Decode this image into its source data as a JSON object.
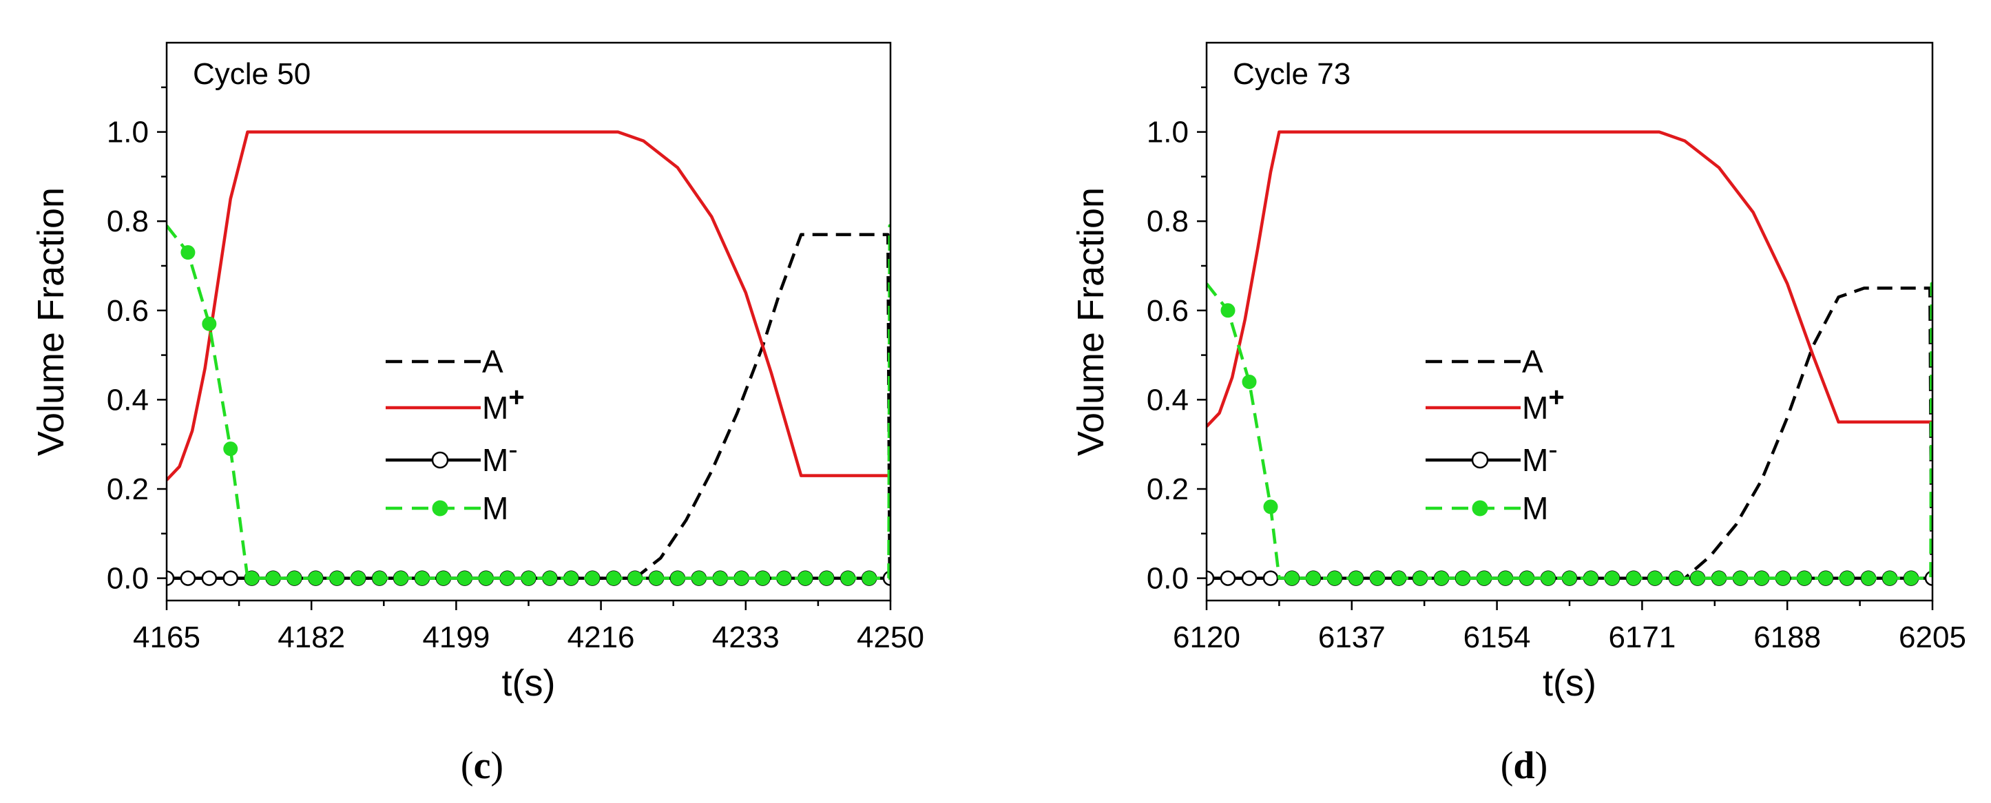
{
  "chart_data": [
    {
      "type": "line",
      "panel_label": "c",
      "annotation": "Cycle 50",
      "xlabel": "t(s)",
      "ylabel": "Volume Fraction",
      "xlim": [
        4165,
        4250
      ],
      "ylim": [
        -0.05,
        1.2
      ],
      "xticks": [
        4165,
        4182,
        4199,
        4216,
        4233,
        4250
      ],
      "yticks": [
        0.0,
        0.2,
        0.4,
        0.6,
        0.8,
        1.0
      ],
      "ytick_labels": [
        "0.0",
        "0.2",
        "0.4",
        "0.6",
        "0.8",
        "1.0"
      ],
      "legend_position": "center",
      "series": [
        {
          "name": "A",
          "sup": "",
          "style": "dashed",
          "color": "#000000",
          "marker": "none",
          "x": [
            4165,
            4220,
            4223,
            4226,
            4229,
            4232,
            4235,
            4237,
            4239.5,
            4249.7,
            4249.9,
            4250
          ],
          "y": [
            0,
            0,
            0.045,
            0.13,
            0.24,
            0.37,
            0.52,
            0.64,
            0.77,
            0.77,
            0.0,
            0.0
          ]
        },
        {
          "name": "M",
          "sup": "+",
          "style": "solid",
          "color": "#e0191c",
          "marker": "none",
          "x": [
            4165,
            4166.5,
            4168,
            4169.5,
            4171,
            4172.5,
            4174.5,
            4218,
            4221,
            4225,
            4229,
            4233,
            4236,
            4239.5,
            4250
          ],
          "y": [
            0.22,
            0.25,
            0.33,
            0.47,
            0.66,
            0.85,
            1.0,
            1.0,
            0.98,
            0.92,
            0.81,
            0.64,
            0.46,
            0.23,
            0.23
          ]
        },
        {
          "name": "M",
          "sup": "-",
          "style": "solid",
          "color": "#000000",
          "marker": "open-circle",
          "x": [
            4165,
            4250
          ],
          "y": [
            0,
            0
          ],
          "marker_x": [
            4165,
            4167.5,
            4170,
            4172.5,
            4175,
            4177.5,
            4180,
            4182.5,
            4185,
            4187.5,
            4190,
            4192.5,
            4195,
            4197.5,
            4200,
            4202.5,
            4205,
            4207.5,
            4210,
            4212.5,
            4215,
            4217.5,
            4220,
            4222.5,
            4225,
            4227.5,
            4230,
            4232.5,
            4235,
            4237.5,
            4240,
            4242.5,
            4245,
            4247.5,
            4250
          ],
          "marker_y": [
            0,
            0,
            0,
            0,
            0,
            0,
            0,
            0,
            0,
            0,
            0,
            0,
            0,
            0,
            0,
            0,
            0,
            0,
            0,
            0,
            0,
            0,
            0,
            0,
            0,
            0,
            0,
            0,
            0,
            0,
            0,
            0,
            0,
            0,
            0
          ]
        },
        {
          "name": "M",
          "sup": "",
          "style": "dashed",
          "color": "#22dd22",
          "marker": "filled-circle",
          "x": [
            4165,
            4167.5,
            4170,
            4172.5,
            4174.5,
            4249.8,
            4249.9,
            4250
          ],
          "y": [
            0.79,
            0.73,
            0.57,
            0.29,
            0.0,
            0.0,
            0.79,
            0.79
          ],
          "marker_x": [
            4167.5,
            4170,
            4172.5,
            4175,
            4177.5,
            4180,
            4182.5,
            4185,
            4187.5,
            4190,
            4192.5,
            4195,
            4197.5,
            4200,
            4202.5,
            4205,
            4207.5,
            4210,
            4212.5,
            4215,
            4217.5,
            4220,
            4222.5,
            4225,
            4227.5,
            4230,
            4232.5,
            4235,
            4237.5,
            4240,
            4242.5,
            4245,
            4247.5
          ],
          "marker_y": [
            0.73,
            0.57,
            0.29,
            0,
            0,
            0,
            0,
            0,
            0,
            0,
            0,
            0,
            0,
            0,
            0,
            0,
            0,
            0,
            0,
            0,
            0,
            0,
            0,
            0,
            0,
            0,
            0,
            0,
            0,
            0,
            0,
            0,
            0
          ]
        }
      ]
    },
    {
      "type": "line",
      "panel_label": "d",
      "annotation": "Cycle 73",
      "xlabel": "t(s)",
      "ylabel": "Volume Fraction",
      "xlim": [
        6120,
        6205
      ],
      "ylim": [
        -0.05,
        1.2
      ],
      "xticks": [
        6120,
        6137,
        6154,
        6171,
        6188,
        6205
      ],
      "yticks": [
        0.0,
        0.2,
        0.4,
        0.6,
        0.8,
        1.0
      ],
      "ytick_labels": [
        "0.0",
        "0.2",
        "0.4",
        "0.6",
        "0.8",
        "1.0"
      ],
      "legend_position": "center",
      "series": [
        {
          "name": "A",
          "sup": "",
          "style": "dashed",
          "color": "#000000",
          "marker": "none",
          "x": [
            6120,
            6176,
            6179,
            6182,
            6185,
            6188,
            6191,
            6194,
            6197,
            6204.7,
            6204.9,
            6205
          ],
          "y": [
            0,
            0,
            0.05,
            0.12,
            0.22,
            0.36,
            0.52,
            0.63,
            0.65,
            0.65,
            0.0,
            0.0
          ]
        },
        {
          "name": "M",
          "sup": "+",
          "style": "solid",
          "color": "#e0191c",
          "marker": "none",
          "x": [
            6120,
            6121.5,
            6123,
            6124.5,
            6126,
            6127.5,
            6128.5,
            6173,
            6176,
            6180,
            6184,
            6188,
            6191,
            6194,
            6205
          ],
          "y": [
            0.34,
            0.37,
            0.45,
            0.58,
            0.74,
            0.91,
            1.0,
            1.0,
            0.98,
            0.92,
            0.82,
            0.66,
            0.5,
            0.35,
            0.35
          ]
        },
        {
          "name": "M",
          "sup": "-",
          "style": "solid",
          "color": "#000000",
          "marker": "open-circle",
          "x": [
            6120,
            6205
          ],
          "y": [
            0,
            0
          ],
          "marker_x": [
            6120,
            6122.5,
            6125,
            6127.5,
            6130,
            6132.5,
            6135,
            6137.5,
            6140,
            6142.5,
            6145,
            6147.5,
            6150,
            6152.5,
            6155,
            6157.5,
            6160,
            6162.5,
            6165,
            6167.5,
            6170,
            6172.5,
            6175,
            6177.5,
            6180,
            6182.5,
            6185,
            6187.5,
            6190,
            6192.5,
            6195,
            6197.5,
            6200,
            6202.5,
            6205
          ],
          "marker_y": [
            0,
            0,
            0,
            0,
            0,
            0,
            0,
            0,
            0,
            0,
            0,
            0,
            0,
            0,
            0,
            0,
            0,
            0,
            0,
            0,
            0,
            0,
            0,
            0,
            0,
            0,
            0,
            0,
            0,
            0,
            0,
            0,
            0,
            0,
            0
          ]
        },
        {
          "name": "M",
          "sup": "",
          "style": "dashed",
          "color": "#22dd22",
          "marker": "filled-circle",
          "x": [
            6120,
            6122.5,
            6125,
            6127.5,
            6128.5,
            6204.8,
            6204.9,
            6205
          ],
          "y": [
            0.66,
            0.6,
            0.44,
            0.16,
            0.0,
            0.0,
            0.66,
            0.66
          ],
          "marker_x": [
            6122.5,
            6125,
            6127.5,
            6130,
            6132.5,
            6135,
            6137.5,
            6140,
            6142.5,
            6145,
            6147.5,
            6150,
            6152.5,
            6155,
            6157.5,
            6160,
            6162.5,
            6165,
            6167.5,
            6170,
            6172.5,
            6175,
            6177.5,
            6180,
            6182.5,
            6185,
            6187.5,
            6190,
            6192.5,
            6195,
            6197.5,
            6200,
            6202.5
          ],
          "marker_y": [
            0.6,
            0.44,
            0.16,
            0,
            0,
            0,
            0,
            0,
            0,
            0,
            0,
            0,
            0,
            0,
            0,
            0,
            0,
            0,
            0,
            0,
            0,
            0,
            0,
            0,
            0,
            0,
            0,
            0,
            0,
            0,
            0,
            0,
            0
          ]
        }
      ]
    }
  ]
}
